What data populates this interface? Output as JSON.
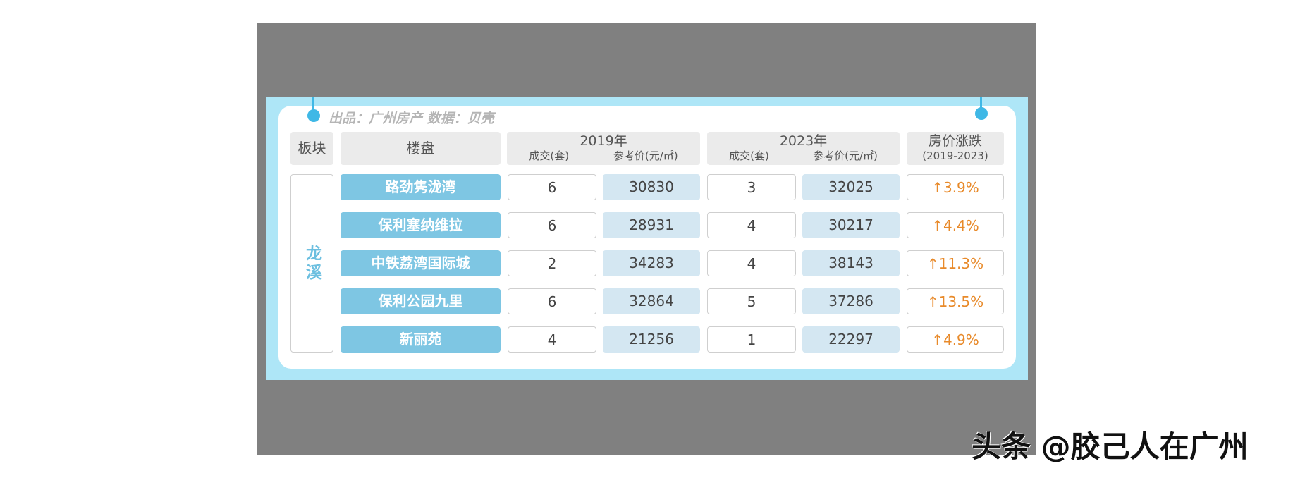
{
  "credit": "出品：广州房产  数据：贝壳",
  "headers": {
    "district": "板块",
    "project": "楼盘",
    "y2019": "2019年",
    "y2023": "2023年",
    "deals": "成交(套)",
    "price": "参考价(元/㎡)",
    "change": "房价涨跌",
    "change_range": "(2019-2023)"
  },
  "district": "龙溪",
  "rows": [
    {
      "name": "路劲隽泷湾",
      "d2019": "6",
      "p2019": "30830",
      "d2023": "3",
      "p2023": "32025",
      "change": "3.9%"
    },
    {
      "name": "保利塞纳维拉",
      "d2019": "6",
      "p2019": "28931",
      "d2023": "4",
      "p2023": "30217",
      "change": "4.4%"
    },
    {
      "name": "中铁荔湾国际城",
      "d2019": "2",
      "p2019": "34283",
      "d2023": "4",
      "p2023": "38143",
      "change": "11.3%"
    },
    {
      "name": "保利公园九里",
      "d2019": "6",
      "p2019": "32864",
      "d2023": "5",
      "p2023": "37286",
      "change": "13.5%"
    },
    {
      "name": "新丽苑",
      "d2019": "4",
      "p2019": "21256",
      "d2023": "1",
      "p2023": "22297",
      "change": "4.9%"
    }
  ],
  "arrow": "↑",
  "watermark": "头条 @胶己人在广州",
  "colors": {
    "accent": "#7ec6e3",
    "up": "#e88a2a",
    "frame": "#aee6f7"
  }
}
